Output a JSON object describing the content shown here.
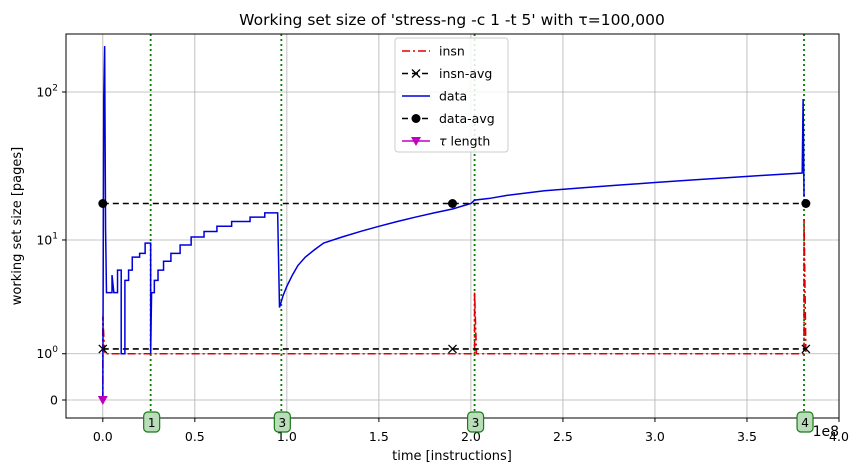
{
  "chart_data": {
    "type": "line",
    "title": "Working set size of 'stress-ng -c 1 -t 5' with τ=100,000",
    "xlabel": "time [instructions]",
    "ylabel": "working set size [pages]",
    "x_offset_label": "1e8",
    "xscale": "linear",
    "yscale": "symlog",
    "xlim": [
      -0.2,
      4.0
    ],
    "x_units": "1e8 instructions",
    "grid": true,
    "legend_position": "upper-center",
    "x_ticks": [
      {
        "value": 0.0,
        "label": "0.0"
      },
      {
        "value": 0.5,
        "label": "0.5"
      },
      {
        "value": 1.0,
        "label": "1.0"
      },
      {
        "value": 1.5,
        "label": "1.5"
      },
      {
        "value": 2.0,
        "label": "2.0"
      },
      {
        "value": 2.5,
        "label": "2.5"
      },
      {
        "value": 3.0,
        "label": "3.0"
      },
      {
        "value": 3.5,
        "label": "3.5"
      },
      {
        "value": 4.0,
        "label": "4.0"
      }
    ],
    "y_ticks": [
      {
        "value": 0,
        "base": "0",
        "exp": ""
      },
      {
        "value": 1,
        "base": "10",
        "exp": "0"
      },
      {
        "value": 10,
        "base": "10",
        "exp": "1"
      },
      {
        "value": 100,
        "base": "10",
        "exp": "2"
      }
    ],
    "series": [
      {
        "name": "insn",
        "color": "#dd0000",
        "style": "dash-dot",
        "marker": "none",
        "points": [
          [
            0.0,
            0
          ],
          [
            0.0,
            2.5
          ],
          [
            0.01,
            1
          ],
          [
            2.02,
            1
          ],
          [
            2.02,
            4
          ],
          [
            2.03,
            1
          ],
          [
            3.81,
            1
          ],
          [
            3.81,
            14
          ],
          [
            3.82,
            1
          ]
        ]
      },
      {
        "name": "insn-avg",
        "color": "#000000",
        "style": "dashed",
        "marker": "x",
        "points": [
          [
            0.0,
            1.15
          ],
          [
            1.9,
            1.15
          ],
          [
            3.82,
            1.15
          ]
        ]
      },
      {
        "name": "data",
        "color": "#0000dd",
        "style": "solid",
        "marker": "none",
        "points": [
          [
            0.0,
            0
          ],
          [
            0.005,
            90
          ],
          [
            0.01,
            200
          ],
          [
            0.015,
            12
          ],
          [
            0.02,
            4
          ],
          [
            0.05,
            4
          ],
          [
            0.05,
            5.5
          ],
          [
            0.06,
            4
          ],
          [
            0.08,
            4
          ],
          [
            0.08,
            6
          ],
          [
            0.1,
            6
          ],
          [
            0.1,
            1
          ],
          [
            0.12,
            1
          ],
          [
            0.12,
            5
          ],
          [
            0.14,
            5
          ],
          [
            0.14,
            6
          ],
          [
            0.16,
            6
          ],
          [
            0.16,
            7.5
          ],
          [
            0.2,
            7.5
          ],
          [
            0.2,
            8
          ],
          [
            0.23,
            8
          ],
          [
            0.23,
            9.5
          ],
          [
            0.26,
            9.5
          ],
          [
            0.26,
            1
          ],
          [
            0.265,
            4
          ],
          [
            0.28,
            4
          ],
          [
            0.28,
            5
          ],
          [
            0.3,
            5
          ],
          [
            0.3,
            6
          ],
          [
            0.33,
            6
          ],
          [
            0.33,
            7
          ],
          [
            0.37,
            7
          ],
          [
            0.37,
            8
          ],
          [
            0.42,
            8
          ],
          [
            0.42,
            9.2
          ],
          [
            0.48,
            9.2
          ],
          [
            0.48,
            10.5
          ],
          [
            0.55,
            10.5
          ],
          [
            0.55,
            11.5
          ],
          [
            0.62,
            11.5
          ],
          [
            0.62,
            12.5
          ],
          [
            0.7,
            12.5
          ],
          [
            0.7,
            13.5
          ],
          [
            0.8,
            13.5
          ],
          [
            0.8,
            14.5
          ],
          [
            0.88,
            14.5
          ],
          [
            0.88,
            15.5
          ],
          [
            0.95,
            15.5
          ],
          [
            0.96,
            3
          ],
          [
            0.98,
            3.8
          ],
          [
            1.0,
            4.5
          ],
          [
            1.03,
            5.5
          ],
          [
            1.06,
            6.5
          ],
          [
            1.1,
            7.5
          ],
          [
            1.15,
            8.5
          ],
          [
            1.2,
            9.5
          ],
          [
            1.3,
            10.5
          ],
          [
            1.4,
            11.5
          ],
          [
            1.5,
            12.5
          ],
          [
            1.6,
            13.5
          ],
          [
            1.7,
            14.5
          ],
          [
            1.8,
            15.5
          ],
          [
            1.9,
            16.5
          ],
          [
            2.0,
            18
          ],
          [
            2.02,
            19
          ],
          [
            2.1,
            19.5
          ],
          [
            2.2,
            20.5
          ],
          [
            2.4,
            22
          ],
          [
            2.6,
            23
          ],
          [
            2.8,
            24
          ],
          [
            3.0,
            25
          ],
          [
            3.2,
            26
          ],
          [
            3.4,
            27
          ],
          [
            3.6,
            28
          ],
          [
            3.8,
            29
          ],
          [
            3.805,
            90
          ],
          [
            3.81,
            20
          ]
        ]
      },
      {
        "name": "data-avg",
        "color": "#000000",
        "style": "dashed",
        "marker": "o",
        "points": [
          [
            0.0,
            18
          ],
          [
            1.9,
            18
          ],
          [
            3.82,
            18
          ]
        ]
      },
      {
        "name": "τ length",
        "color": "#bf00bf",
        "style": "solid",
        "marker": "v",
        "points": [
          [
            0.0,
            0
          ]
        ]
      }
    ],
    "phase_markers": [
      {
        "x": 0.26,
        "label": "1"
      },
      {
        "x": 0.97,
        "label": "3"
      },
      {
        "x": 2.02,
        "label": "3"
      },
      {
        "x": 3.81,
        "label": "4"
      }
    ]
  }
}
